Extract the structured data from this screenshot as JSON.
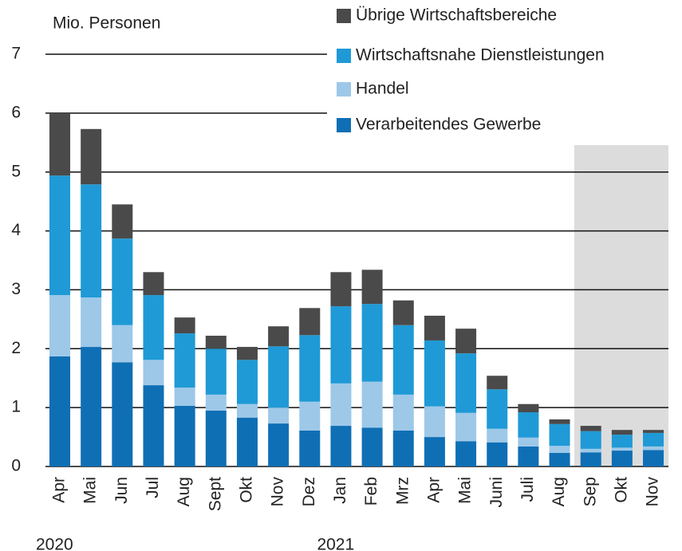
{
  "chart_data": {
    "type": "stacked_bar",
    "y_label": "Mio. Personen",
    "categories": [
      "Apr",
      "Mai",
      "Jun",
      "Jul",
      "Aug",
      "Sept",
      "Okt",
      "Nov",
      "Dez",
      "Jan",
      "Feb",
      "Mrz",
      "Apr",
      "Mai",
      "Juni",
      "Juli",
      "Aug",
      "Sep",
      "Okt",
      "Nov"
    ],
    "year_labels": [
      {
        "label": "2020",
        "start": 0
      },
      {
        "label": "2021",
        "start": 9
      }
    ],
    "series": [
      {
        "name": "Verarbeitendes Gewerbe",
        "color": "#0f6fb5",
        "values": [
          1.87,
          2.03,
          1.77,
          1.38,
          1.03,
          0.95,
          0.83,
          0.73,
          0.61,
          0.69,
          0.66,
          0.61,
          0.5,
          0.43,
          0.41,
          0.34,
          0.23,
          0.24,
          0.27,
          0.28
        ]
      },
      {
        "name": "Handel",
        "color": "#9dc8e8",
        "values": [
          1.04,
          0.84,
          0.63,
          0.43,
          0.31,
          0.27,
          0.23,
          0.27,
          0.49,
          0.72,
          0.78,
          0.61,
          0.52,
          0.48,
          0.23,
          0.15,
          0.12,
          0.06,
          0.05,
          0.06
        ]
      },
      {
        "name": "Wirtschaftsnahe Dienstleistungen",
        "color": "#1f9ad6",
        "values": [
          2.03,
          1.92,
          1.47,
          1.1,
          0.92,
          0.78,
          0.75,
          1.04,
          1.13,
          1.31,
          1.32,
          1.18,
          1.12,
          1.01,
          0.67,
          0.43,
          0.37,
          0.3,
          0.22,
          0.23
        ]
      },
      {
        "name": "Übrige Wirtschaftsbereiche",
        "color": "#4a4a4a",
        "values": [
          1.06,
          0.94,
          0.58,
          0.39,
          0.27,
          0.22,
          0.22,
          0.34,
          0.46,
          0.58,
          0.58,
          0.42,
          0.42,
          0.42,
          0.23,
          0.14,
          0.08,
          0.09,
          0.08,
          0.05
        ]
      }
    ],
    "ylim": [
      0,
      7
    ],
    "yticks": [
      0,
      1,
      2,
      3,
      4,
      5,
      6,
      7
    ],
    "grid": true
  }
}
